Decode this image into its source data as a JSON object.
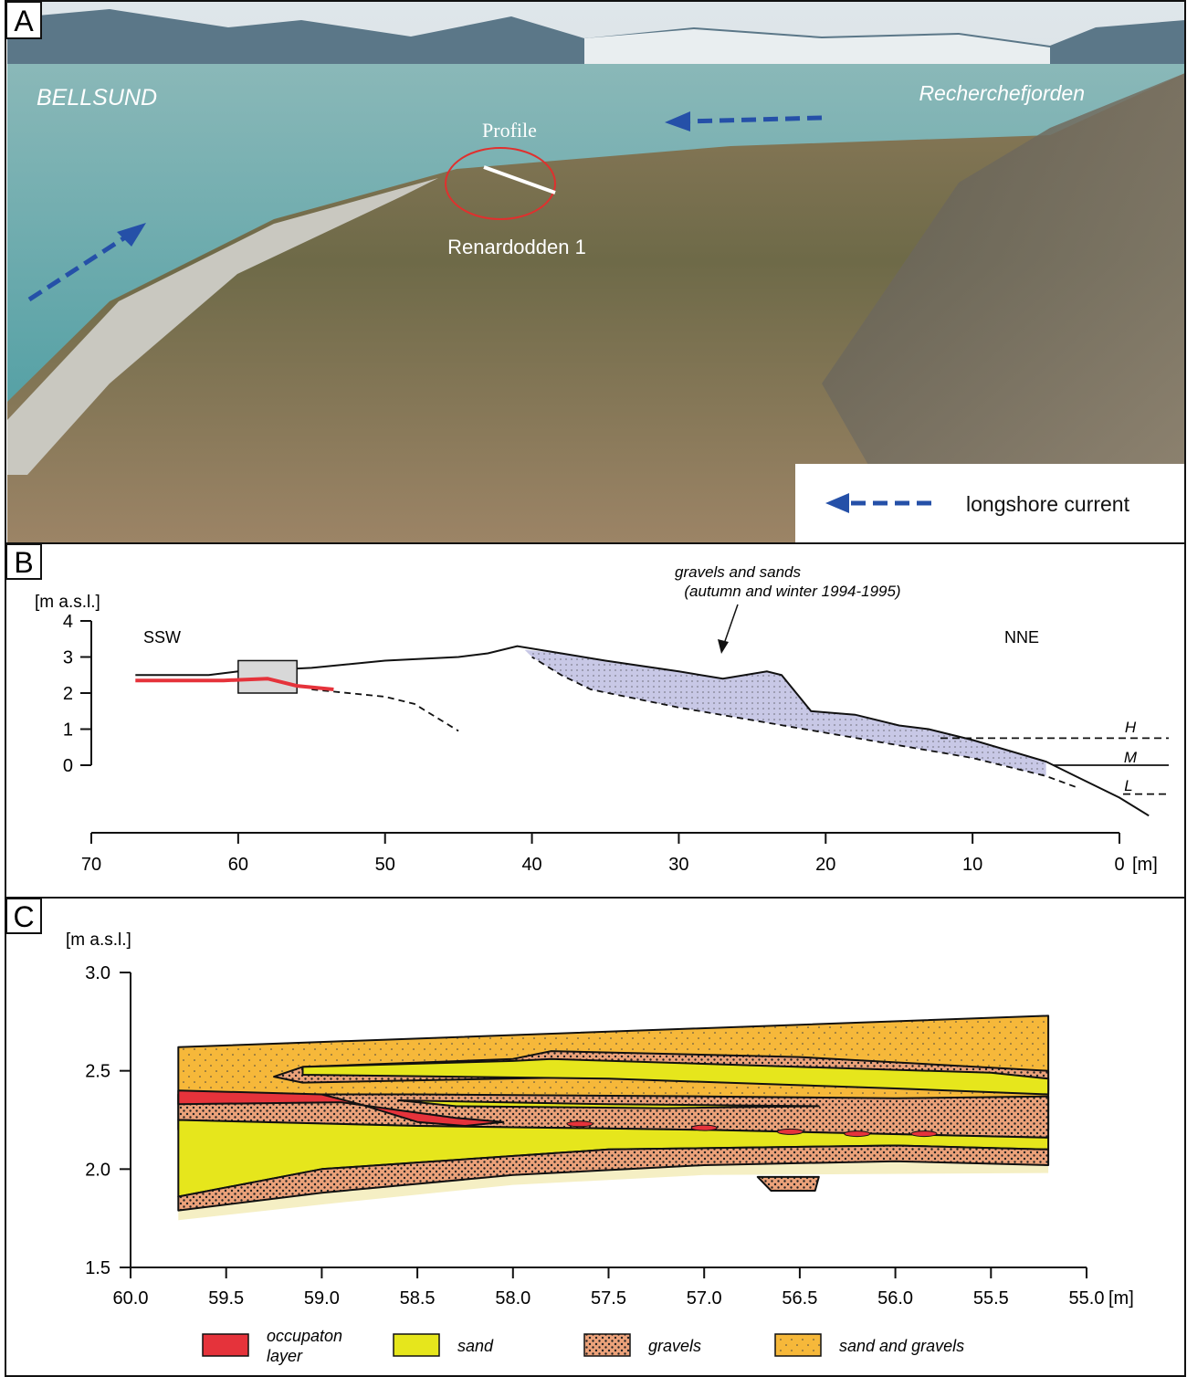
{
  "panel_a": {
    "label": "A",
    "places": {
      "bellsund": "BELLSUND",
      "recherchefjorden": "Recherchefjorden",
      "profile": "Profile",
      "site": "Renardodden 1"
    },
    "legend": "longshore current"
  },
  "panel_b": {
    "label": "B",
    "y_axis_label": "[m a.s.l.]",
    "y_ticks": [
      "0",
      "1",
      "2",
      "3",
      "4"
    ],
    "x_ticks": [
      "70",
      "60",
      "50",
      "40",
      "30",
      "20",
      "10",
      "0"
    ],
    "x_unit": "[m]",
    "left_direction": "SSW",
    "right_direction": "NNE",
    "annotation": [
      "gravels and sands",
      "(autumn and winter 1994-1995)"
    ],
    "tide_levels": [
      "H",
      "M",
      "L"
    ]
  },
  "panel_c": {
    "label": "C",
    "y_axis_label": "[m a.s.l.]",
    "y_ticks": [
      "1.5",
      "2.0",
      "2.5",
      "3.0"
    ],
    "x_ticks": [
      "60.0",
      "59.5",
      "59.0",
      "58.5",
      "58.0",
      "57.5",
      "57.0",
      "56.5",
      "56.0",
      "55.5",
      "55.0"
    ],
    "x_unit": "[m]",
    "legend": [
      {
        "label": [
          "occupaton",
          "layer"
        ]
      },
      {
        "label": [
          "sand"
        ]
      },
      {
        "label": [
          "gravels"
        ]
      },
      {
        "label": [
          "sand and gravels"
        ]
      }
    ]
  }
}
